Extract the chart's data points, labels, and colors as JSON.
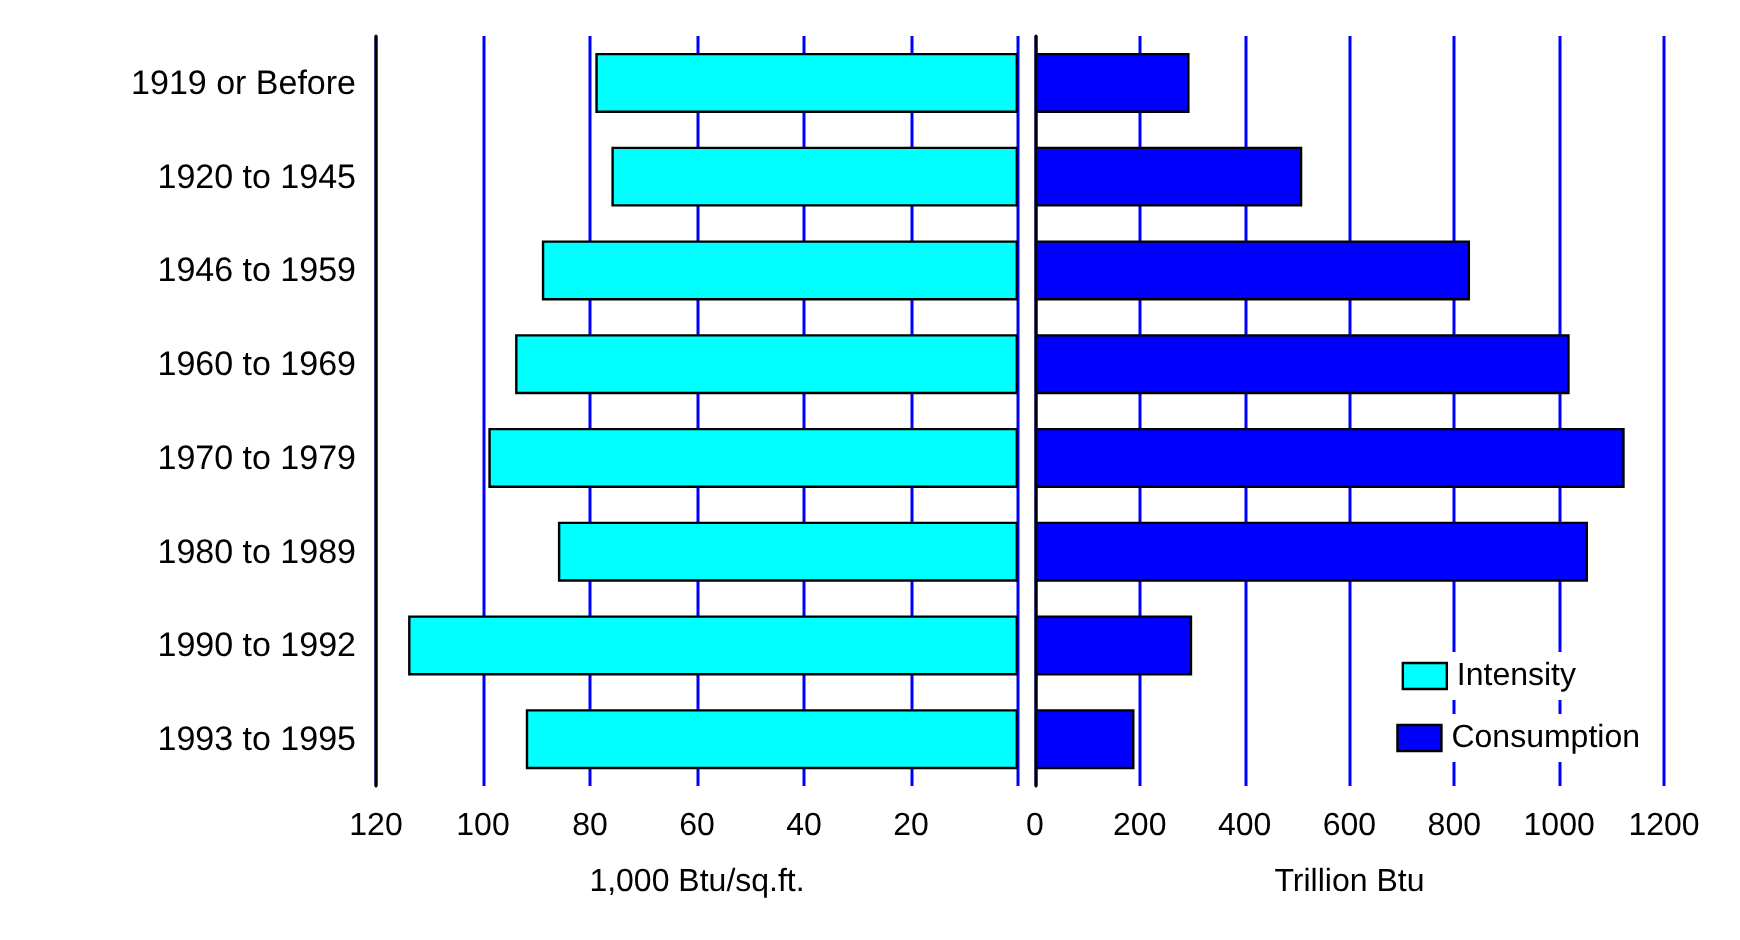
{
  "chart_data": [
    {
      "type": "bar",
      "orientation": "horizontal",
      "categories": [
        "1919 or Before",
        "1920 to 1945",
        "1946 to 1959",
        "1960 to 1969",
        "1970 to 1979",
        "1980 to 1989",
        "1990 to 1992",
        "1993 to 1995"
      ],
      "series": [
        {
          "name": "Intensity",
          "color": "#00ffff",
          "values": [
            79,
            76,
            89,
            94,
            99,
            86,
            114,
            92
          ]
        }
      ],
      "xlabel": "1,000 Btu/sq.ft.",
      "xlim": [
        120,
        0
      ],
      "xticks": [
        120,
        100,
        80,
        60,
        40,
        20
      ],
      "grid": "x",
      "legend": "bottom right"
    },
    {
      "type": "bar",
      "orientation": "horizontal",
      "categories": [
        null,
        null,
        null,
        null,
        null,
        null,
        null,
        null
      ],
      "series": [
        {
          "name": "Consumption",
          "color": "#0000ff",
          "values": [
            295,
            510,
            830,
            1020,
            1125,
            1055,
            300,
            190
          ]
        }
      ],
      "xlabel": "Trillion Btu",
      "xlim": [
        0,
        1200
      ],
      "xticks": [
        0,
        200,
        400,
        600,
        800,
        1000,
        1200
      ],
      "grid": "x",
      "legend": "bottom right",
      "tick_labels": "x"
    }
  ]
}
